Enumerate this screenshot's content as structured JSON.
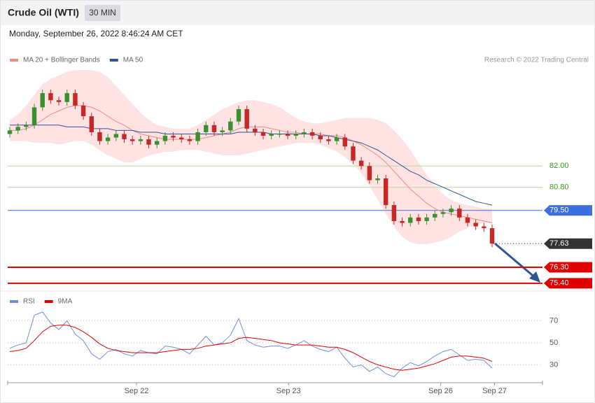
{
  "header": {
    "title": "Crude Oil (WTI)",
    "interval": "30 MIN",
    "date": "Monday, September 26, 2022 8:46:24 AM CET"
  },
  "credit": "Research © 2022 Trading Central",
  "chart_data": [
    {
      "type": "candlestick",
      "xlim": [
        0,
        59
      ],
      "ylim": [
        75,
        87.6
      ],
      "up_color": "#3a8f2e",
      "down_color": "#c62828",
      "open": [
        83.8,
        84.0,
        84.2,
        84.3,
        85.3,
        86.1,
        85.7,
        85.6,
        86.1,
        85.4,
        84.8,
        83.9,
        83.4,
        83.6,
        83.8,
        83.5,
        83.4,
        83.5,
        83.2,
        83.4,
        83.7,
        83.6,
        83.5,
        83.4,
        83.9,
        84.3,
        83.9,
        84.0,
        84.5,
        85.2,
        84.1,
        83.9,
        83.7,
        83.8,
        83.8,
        83.7,
        83.8,
        83.9,
        83.7,
        83.5,
        83.4,
        83.6,
        83.1,
        82.3,
        82.0,
        81.2,
        81.3,
        79.8,
        78.9,
        78.8,
        79.1,
        78.9,
        79.1,
        79.3,
        79.4,
        79.6,
        79.1,
        78.8,
        78.6,
        78.5
      ],
      "high": [
        84.2,
        84.4,
        84.5,
        85.5,
        86.3,
        86.3,
        85.9,
        86.3,
        86.3,
        85.6,
        85.0,
        84.1,
        83.8,
        84.0,
        84.0,
        83.7,
        83.7,
        83.7,
        83.6,
        83.9,
        83.9,
        83.8,
        83.7,
        84.1,
        84.5,
        84.5,
        84.2,
        84.7,
        85.4,
        85.4,
        84.3,
        84.1,
        84.0,
        84.0,
        84.0,
        84.0,
        84.1,
        84.1,
        83.9,
        83.7,
        83.8,
        83.8,
        83.3,
        82.5,
        82.2,
        81.5,
        81.5,
        80.0,
        79.1,
        79.3,
        79.3,
        79.3,
        79.5,
        79.6,
        79.8,
        79.8,
        79.3,
        79.0,
        78.8,
        78.7
      ],
      "low": [
        83.6,
        83.8,
        84.0,
        84.1,
        85.1,
        85.5,
        85.4,
        85.4,
        85.2,
        84.6,
        83.7,
        83.2,
        83.2,
        83.4,
        83.3,
        83.2,
        83.2,
        83.0,
        83.0,
        83.2,
        83.4,
        83.3,
        83.2,
        83.2,
        83.7,
        83.7,
        83.7,
        83.8,
        84.3,
        83.9,
        83.7,
        83.5,
        83.5,
        83.6,
        83.5,
        83.5,
        83.6,
        83.5,
        83.3,
        83.2,
        83.2,
        82.9,
        82.1,
        81.8,
        81.0,
        81.0,
        79.6,
        78.7,
        78.6,
        78.6,
        78.7,
        78.7,
        78.9,
        79.1,
        79.2,
        78.9,
        78.6,
        78.4,
        78.3,
        77.43
      ],
      "close": [
        84.0,
        84.2,
        84.3,
        85.3,
        86.1,
        85.7,
        85.6,
        86.1,
        85.4,
        84.8,
        83.9,
        83.4,
        83.6,
        83.8,
        83.5,
        83.4,
        83.5,
        83.2,
        83.4,
        83.7,
        83.6,
        83.5,
        83.4,
        83.9,
        84.3,
        83.9,
        84.0,
        84.5,
        85.2,
        84.1,
        83.9,
        83.7,
        83.8,
        83.8,
        83.7,
        83.8,
        83.9,
        83.7,
        83.5,
        83.4,
        83.6,
        83.1,
        82.3,
        82.0,
        81.2,
        81.3,
        79.8,
        78.9,
        78.8,
        79.1,
        78.9,
        79.1,
        79.3,
        79.4,
        79.6,
        79.1,
        78.8,
        78.6,
        78.5,
        77.63
      ],
      "bands": {
        "color": "#ffdede",
        "upper": [
          84.6,
          84.9,
          85.4,
          86.0,
          86.6,
          86.9,
          87.1,
          87.3,
          87.4,
          87.4,
          87.4,
          87.3,
          87.0,
          86.5,
          86.0,
          85.5,
          85.0,
          84.6,
          84.3,
          84.2,
          84.1,
          84.1,
          84.1,
          84.3,
          84.6,
          84.9,
          85.2,
          85.4,
          85.6,
          85.7,
          85.7,
          85.6,
          85.5,
          85.3,
          85.0,
          84.7,
          84.5,
          84.4,
          84.4,
          84.5,
          84.6,
          84.7,
          84.7,
          84.7,
          84.7,
          84.6,
          84.4,
          84.0,
          83.5,
          82.9,
          82.2,
          81.5,
          80.9,
          80.4,
          80.1,
          79.9,
          79.8,
          79.7,
          79.6,
          79.6
        ],
        "lower": [
          83.4,
          83.4,
          83.4,
          83.3,
          83.3,
          83.3,
          83.2,
          83.3,
          83.4,
          83.4,
          83.2,
          82.9,
          82.6,
          82.4,
          82.2,
          82.2,
          82.4,
          82.6,
          82.7,
          82.8,
          82.8,
          82.9,
          82.9,
          82.9,
          82.8,
          82.7,
          82.6,
          82.6,
          82.6,
          82.7,
          82.8,
          82.9,
          83.0,
          83.1,
          83.2,
          83.3,
          83.3,
          83.3,
          83.2,
          83.0,
          82.8,
          82.5,
          82.1,
          81.6,
          80.9,
          80.1,
          79.3,
          78.6,
          78.0,
          77.7,
          77.6,
          77.6,
          77.7,
          77.8,
          78.0,
          78.3,
          78.5,
          78.7,
          78.8,
          78.8
        ]
      },
      "series": [
        {
          "name": "MA 20 + Bollinger Bands",
          "color": "#f28b82",
          "values": [
            84.0,
            84.0,
            84.1,
            84.3,
            84.6,
            84.9,
            85.1,
            85.3,
            85.4,
            85.4,
            85.3,
            85.1,
            84.8,
            84.5,
            84.3,
            84.0,
            83.8,
            83.7,
            83.6,
            83.5,
            83.5,
            83.5,
            83.5,
            83.5,
            83.6,
            83.7,
            83.8,
            83.9,
            84.1,
            84.2,
            84.2,
            84.2,
            84.1,
            84.0,
            83.9,
            83.9,
            83.8,
            83.8,
            83.8,
            83.7,
            83.7,
            83.6,
            83.4,
            83.2,
            82.9,
            82.6,
            82.2,
            81.7,
            81.2,
            80.7,
            80.3,
            79.9,
            79.6,
            79.4,
            79.3,
            79.2,
            79.1,
            79.0,
            78.9,
            78.8
          ]
        },
        {
          "name": "MA 50",
          "color": "#2f5597",
          "values": [
            84.3,
            84.3,
            84.3,
            84.3,
            84.3,
            84.3,
            84.3,
            84.2,
            84.2,
            84.2,
            84.1,
            84.1,
            84.1,
            84.0,
            84.0,
            84.0,
            83.9,
            83.9,
            83.9,
            83.8,
            83.8,
            83.8,
            83.8,
            83.8,
            83.8,
            83.8,
            83.8,
            83.8,
            83.9,
            83.9,
            83.9,
            83.9,
            83.8,
            83.8,
            83.8,
            83.8,
            83.8,
            83.8,
            83.7,
            83.7,
            83.6,
            83.5,
            83.4,
            83.3,
            83.1,
            82.9,
            82.6,
            82.3,
            82.0,
            81.7,
            81.5,
            81.2,
            81.0,
            80.8,
            80.6,
            80.4,
            80.2,
            80.0,
            79.9,
            79.8
          ]
        }
      ],
      "levels": [
        {
          "value": 82,
          "label": "82.00",
          "color": "#b7d7a0",
          "text_color": "#3a9a1a",
          "box": false,
          "style": "solid"
        },
        {
          "value": 80.8,
          "label": "80.80",
          "color": "#b7d7a0",
          "text_color": "#3a9a1a",
          "box": false,
          "style": "solid"
        },
        {
          "value": 79.5,
          "label": "79.50",
          "color": "#3b6fe0",
          "text_color": "#ffffff",
          "box": true,
          "style": "solid"
        },
        {
          "value": 77.63,
          "color": "#333333",
          "text_color": "#ffffff",
          "box": true,
          "style": "dotted"
        },
        {
          "value": 76.3,
          "label": "76.30",
          "color": "#e00000",
          "text_color": "#ffffff",
          "box": true,
          "style": "solid"
        },
        {
          "value": 75.4,
          "label": "75.40",
          "color": "#e00000",
          "text_color": "#ffffff",
          "box": true,
          "style": "solid"
        }
      ]
    },
    {
      "type": "line",
      "xlim": [
        0,
        59
      ],
      "ylim": [
        15,
        85
      ],
      "yticks": [
        70,
        50,
        30
      ],
      "grid": true,
      "xticks": [
        {
          "value": 15.5,
          "label": "Sep 22"
        },
        {
          "value": 34.1,
          "label": "Sep 23"
        },
        {
          "value": 52.7,
          "label": "Sep 26"
        },
        {
          "value": 59.3,
          "label": "Sep 27"
        }
      ],
      "series": [
        {
          "name": "RSI",
          "color": "#6f8fdc",
          "values": [
            45,
            48,
            50,
            75,
            78,
            68,
            62,
            70,
            58,
            52,
            40,
            35,
            42,
            44,
            40,
            38,
            43,
            41,
            40,
            47,
            46,
            44,
            40,
            48,
            56,
            48,
            50,
            57,
            72,
            52,
            48,
            46,
            47,
            47,
            45,
            48,
            52,
            47,
            44,
            42,
            46,
            36,
            28,
            30,
            24,
            28,
            22,
            19,
            27,
            32,
            29,
            33,
            38,
            42,
            44,
            39,
            34,
            35,
            34,
            27
          ]
        },
        {
          "name": "9MA",
          "color": "#e00000",
          "values": [
            42,
            43,
            45,
            52,
            60,
            65,
            66,
            66,
            64,
            60,
            55,
            49,
            45,
            43,
            42,
            41,
            41,
            41,
            41,
            42,
            43,
            44,
            44,
            45,
            47,
            48,
            49,
            50,
            54,
            55,
            54,
            53,
            52,
            50,
            49,
            48,
            48,
            48,
            47,
            46,
            46,
            44,
            41,
            37,
            33,
            30,
            28,
            26,
            25,
            26,
            27,
            29,
            31,
            34,
            37,
            38,
            38,
            37,
            36,
            33
          ]
        }
      ]
    }
  ]
}
